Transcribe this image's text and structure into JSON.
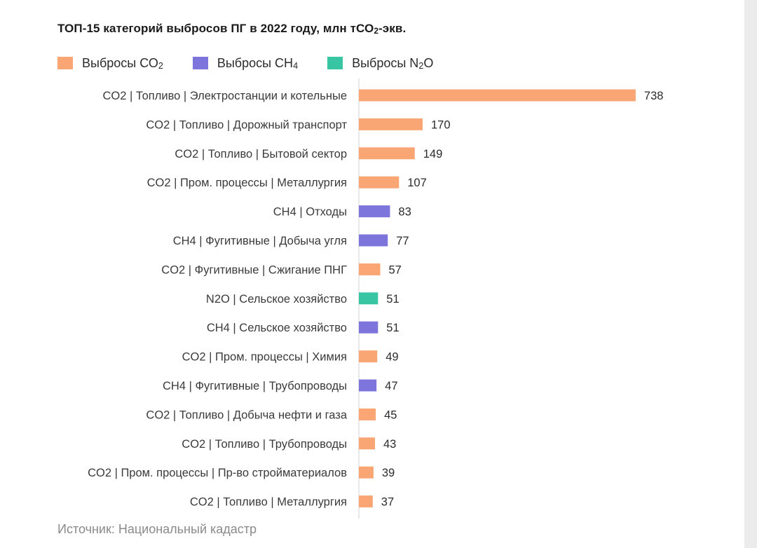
{
  "title_main": "ТОП-15 категорий выбросов ПГ в 2022 году, млн тСО",
  "title_sub": "2",
  "title_end": "-экв.",
  "legend": [
    {
      "text": "Выбросы СО",
      "sub": "2",
      "color": "#f9a674"
    },
    {
      "text": "Выбросы СН",
      "sub": "4",
      "color": "#7d74dc"
    },
    {
      "text": "Выбросы N",
      "sub": "2",
      "tail": "O",
      "color": "#38c5a4"
    }
  ],
  "source": "Источник: Национальный кадастр",
  "chart_data": {
    "type": "bar",
    "orientation": "horizontal",
    "categories": [
      "CO2 | Топливо | Электростанции и котельные",
      "CO2 | Топливо | Дорожный транспорт",
      "CO2 | Топливо | Бытовой сектор",
      "CO2 | Пром. процессы | Металлургия",
      "CH4 | Отходы",
      "CH4 | Фугитивные | Добыча угля",
      "CO2 | Фугитивные | Сжигание ПНГ",
      "N2O | Сельское хозяйство",
      "CH4 | Сельское хозяйство",
      "CO2 | Пром. процессы | Химия",
      "CH4 | Фугитивные | Трубопроводы",
      "CO2 | Топливо | Добыча нефти и газа",
      "CO2 | Топливо | Трубопроводы",
      "CO2 | Пром. процессы | Пр-во стройматериалов",
      "CO2 | Топливо | Металлургия"
    ],
    "values": [
      738,
      170,
      149,
      107,
      83,
      77,
      57,
      51,
      51,
      49,
      47,
      45,
      43,
      39,
      37
    ],
    "gas": [
      "CO2",
      "CO2",
      "CO2",
      "CO2",
      "CH4",
      "CH4",
      "CO2",
      "N2O",
      "CH4",
      "CO2",
      "CH4",
      "CO2",
      "CO2",
      "CO2",
      "CO2"
    ],
    "colors": {
      "CO2": "#f9a674",
      "CH4": "#7d74dc",
      "N2O": "#38c5a4"
    },
    "xlim": [
      0,
      740
    ],
    "grid": false,
    "legend_position": "top-left"
  }
}
